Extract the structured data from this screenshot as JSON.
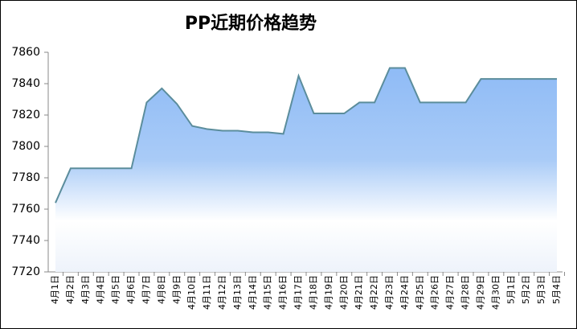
{
  "chart_data": {
    "type": "area",
    "title": "PP近期价格趋势",
    "categories": [
      "4月1日",
      "4月2日",
      "4月3日",
      "4月4日",
      "4月5日",
      "4月6日",
      "4月7日",
      "4月8日",
      "4月9日",
      "4月10日",
      "4月11日",
      "4月12日",
      "4月13日",
      "4月14日",
      "4月15日",
      "4月16日",
      "4月17日",
      "4月18日",
      "4月19日",
      "4月20日",
      "4月21日",
      "4月22日",
      "4月23日",
      "4月24日",
      "4月25日",
      "4月26日",
      "4月27日",
      "4月28日",
      "4月29日",
      "4月30日",
      "5月1日",
      "5月2日",
      "5月3日",
      "5月4日"
    ],
    "values": [
      7764,
      7786,
      7786,
      7786,
      7786,
      7786,
      7828,
      7837,
      7827,
      7813,
      7811,
      7810,
      7810,
      7809,
      7809,
      7808,
      7845,
      7821,
      7821,
      7821,
      7828,
      7828,
      7850,
      7850,
      7828,
      7828,
      7828,
      7828,
      7843,
      7843,
      7843,
      7843,
      7843,
      7843
    ],
    "color": "#5b8d9c",
    "ylim": [
      7720,
      7860
    ],
    "yticks": [
      7720,
      7740,
      7760,
      7780,
      7800,
      7820,
      7840,
      7860
    ],
    "grid": false
  }
}
